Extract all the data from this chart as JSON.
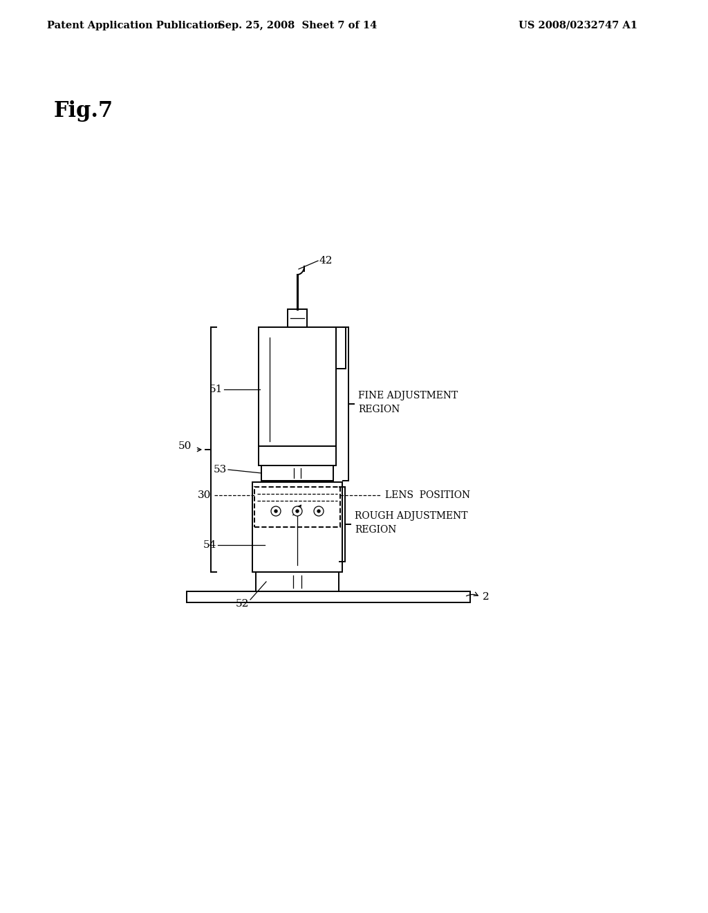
{
  "background_color": "#ffffff",
  "title_left": "Patent Application Publication",
  "title_center": "Sep. 25, 2008  Sheet 7 of 14",
  "title_right": "US 2008/0232747 A1",
  "fig_label": "Fig.7",
  "header_fontsize": 10.5,
  "figlabel_fontsize": 22,
  "label_fontsize": 10,
  "line_color": "#000000",
  "line_width": 1.4,
  "thin_line": 0.9
}
